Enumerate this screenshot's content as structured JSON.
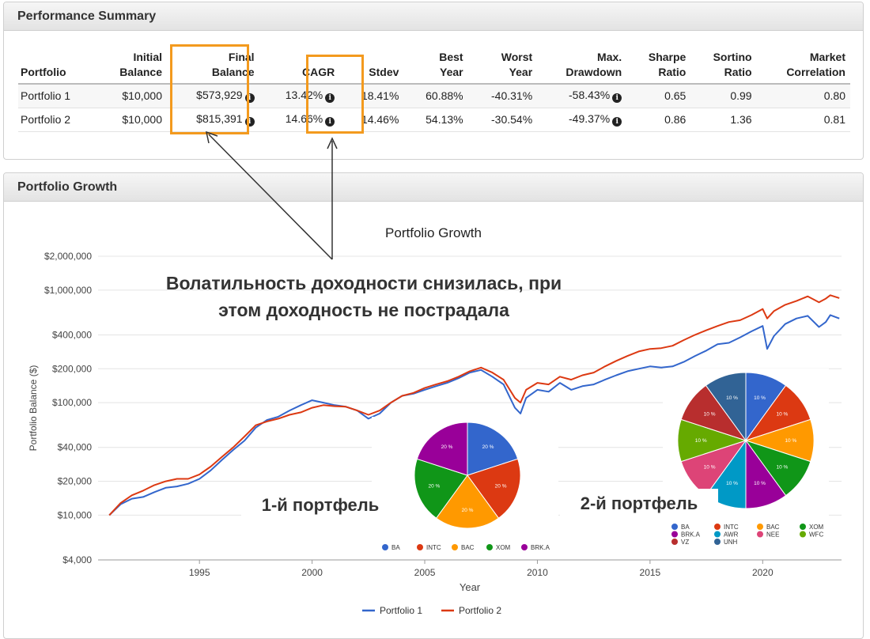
{
  "performance": {
    "title": "Performance Summary",
    "headers": [
      [
        "Portfolio"
      ],
      [
        "Initial",
        "Balance"
      ],
      [
        "Final",
        "Balance"
      ],
      [
        "CAGR"
      ],
      [
        "Stdev"
      ],
      [
        "Best",
        "Year"
      ],
      [
        "Worst",
        "Year"
      ],
      [
        "Max.",
        "Drawdown"
      ],
      [
        "Sharpe",
        "Ratio"
      ],
      [
        "Sortino",
        "Ratio"
      ],
      [
        "Market",
        "Correlation"
      ]
    ],
    "rows": [
      [
        "Portfolio 1",
        "$10,000",
        "$573,929",
        "13.42%",
        "18.41%",
        "60.88%",
        "-40.31%",
        "-58.43%",
        "0.65",
        "0.99",
        "0.80"
      ],
      [
        "Portfolio 2",
        "$10,000",
        "$815,391",
        "14.66%",
        "14.46%",
        "54.13%",
        "-30.54%",
        "-49.37%",
        "0.86",
        "1.36",
        "0.81"
      ]
    ],
    "info_icon": "i"
  },
  "growth": {
    "title": "Portfolio Growth",
    "chart_title": "Portfolio Growth",
    "annotation": [
      "Волатильность доходности снизилась, при",
      "этом доходность не пострадала"
    ],
    "label_portfolio1": "1-й портфель",
    "label_portfolio2": "2-й портфель"
  },
  "colors": {
    "portfolio1": "#3366cc",
    "portfolio2": "#dc3912",
    "highlight": "#f39a1e"
  },
  "chart_data": [
    {
      "type": "line",
      "title": "Portfolio Growth",
      "xlabel": "Year",
      "ylabel": "Portfolio Balance ($)",
      "y_scale": "log",
      "ylim": [
        4000,
        2000000
      ],
      "xlim": [
        1990.5,
        2023.5
      ],
      "y_ticks": [
        {
          "v": 2000000,
          "label": "$2,000,000"
        },
        {
          "v": 1000000,
          "label": "$1,000,000"
        },
        {
          "v": 400000,
          "label": "$400,000"
        },
        {
          "v": 200000,
          "label": "$200,000"
        },
        {
          "v": 100000,
          "label": "$100,000"
        },
        {
          "v": 40000,
          "label": "$40,000"
        },
        {
          "v": 20000,
          "label": "$20,000"
        },
        {
          "v": 10000,
          "label": "$10,000"
        },
        {
          "v": 4000,
          "label": "$4,000"
        }
      ],
      "x_ticks": [
        {
          "v": 1995,
          "label": "1995"
        },
        {
          "v": 2000,
          "label": "2000"
        },
        {
          "v": 2005,
          "label": "2005"
        },
        {
          "v": 2010,
          "label": "2010"
        },
        {
          "v": 2015,
          "label": "2015"
        },
        {
          "v": 2020,
          "label": "2020"
        }
      ],
      "grid": true,
      "legend": "bottom",
      "series": [
        {
          "name": "Portfolio 1",
          "color": "#3366cc",
          "points": [
            [
              1991.0,
              10000
            ],
            [
              1991.5,
              12500
            ],
            [
              1992.0,
              14000
            ],
            [
              1992.5,
              14500
            ],
            [
              1993.0,
              16000
            ],
            [
              1993.5,
              17500
            ],
            [
              1994.0,
              18000
            ],
            [
              1994.5,
              19000
            ],
            [
              1995.0,
              21000
            ],
            [
              1995.5,
              25000
            ],
            [
              1996.0,
              31000
            ],
            [
              1996.5,
              38000
            ],
            [
              1997.0,
              46000
            ],
            [
              1997.5,
              60000
            ],
            [
              1998.0,
              70000
            ],
            [
              1998.5,
              75000
            ],
            [
              1999.0,
              85000
            ],
            [
              1999.5,
              95000
            ],
            [
              2000.0,
              105000
            ],
            [
              2000.5,
              100000
            ],
            [
              2001.0,
              95000
            ],
            [
              2001.5,
              92000
            ],
            [
              2002.0,
              85000
            ],
            [
              2002.5,
              72000
            ],
            [
              2003.0,
              80000
            ],
            [
              2003.5,
              100000
            ],
            [
              2004.0,
              115000
            ],
            [
              2004.5,
              120000
            ],
            [
              2005.0,
              130000
            ],
            [
              2005.5,
              140000
            ],
            [
              2006.0,
              150000
            ],
            [
              2006.5,
              165000
            ],
            [
              2007.0,
              185000
            ],
            [
              2007.5,
              195000
            ],
            [
              2008.0,
              170000
            ],
            [
              2008.5,
              145000
            ],
            [
              2009.0,
              90000
            ],
            [
              2009.25,
              80000
            ],
            [
              2009.5,
              110000
            ],
            [
              2010.0,
              130000
            ],
            [
              2010.5,
              125000
            ],
            [
              2011.0,
              150000
            ],
            [
              2011.5,
              130000
            ],
            [
              2012.0,
              140000
            ],
            [
              2012.5,
              145000
            ],
            [
              2013.0,
              160000
            ],
            [
              2013.5,
              175000
            ],
            [
              2014.0,
              190000
            ],
            [
              2014.5,
              200000
            ],
            [
              2015.0,
              210000
            ],
            [
              2015.5,
              205000
            ],
            [
              2016.0,
              210000
            ],
            [
              2016.5,
              230000
            ],
            [
              2017.0,
              260000
            ],
            [
              2017.5,
              290000
            ],
            [
              2018.0,
              330000
            ],
            [
              2018.5,
              340000
            ],
            [
              2019.0,
              380000
            ],
            [
              2019.5,
              430000
            ],
            [
              2020.0,
              480000
            ],
            [
              2020.2,
              300000
            ],
            [
              2020.5,
              390000
            ],
            [
              2021.0,
              500000
            ],
            [
              2021.5,
              560000
            ],
            [
              2022.0,
              590000
            ],
            [
              2022.5,
              470000
            ],
            [
              2022.8,
              520000
            ],
            [
              2023.0,
              600000
            ],
            [
              2023.4,
              560000
            ]
          ]
        },
        {
          "name": "Portfolio 2",
          "color": "#dc3912",
          "points": [
            [
              1991.0,
              10000
            ],
            [
              1991.5,
              12800
            ],
            [
              1992.0,
              15000
            ],
            [
              1992.5,
              16500
            ],
            [
              1993.0,
              18500
            ],
            [
              1993.5,
              20000
            ],
            [
              1994.0,
              21000
            ],
            [
              1994.5,
              21000
            ],
            [
              1995.0,
              23000
            ],
            [
              1995.5,
              27000
            ],
            [
              1996.0,
              33000
            ],
            [
              1996.5,
              40000
            ],
            [
              1997.0,
              50000
            ],
            [
              1997.5,
              63000
            ],
            [
              1998.0,
              68000
            ],
            [
              1998.5,
              72000
            ],
            [
              1999.0,
              78000
            ],
            [
              1999.5,
              82000
            ],
            [
              2000.0,
              90000
            ],
            [
              2000.5,
              95000
            ],
            [
              2001.0,
              93000
            ],
            [
              2001.5,
              92000
            ],
            [
              2002.0,
              85000
            ],
            [
              2002.5,
              78000
            ],
            [
              2003.0,
              85000
            ],
            [
              2003.5,
              100000
            ],
            [
              2004.0,
              115000
            ],
            [
              2004.5,
              122000
            ],
            [
              2005.0,
              135000
            ],
            [
              2005.5,
              145000
            ],
            [
              2006.0,
              155000
            ],
            [
              2006.5,
              170000
            ],
            [
              2007.0,
              190000
            ],
            [
              2007.5,
              205000
            ],
            [
              2008.0,
              185000
            ],
            [
              2008.5,
              160000
            ],
            [
              2009.0,
              110000
            ],
            [
              2009.25,
              100000
            ],
            [
              2009.5,
              130000
            ],
            [
              2010.0,
              150000
            ],
            [
              2010.5,
              145000
            ],
            [
              2011.0,
              170000
            ],
            [
              2011.5,
              160000
            ],
            [
              2012.0,
              175000
            ],
            [
              2012.5,
              185000
            ],
            [
              2013.0,
              210000
            ],
            [
              2013.5,
              235000
            ],
            [
              2014.0,
              260000
            ],
            [
              2014.5,
              285000
            ],
            [
              2015.0,
              300000
            ],
            [
              2015.5,
              305000
            ],
            [
              2016.0,
              320000
            ],
            [
              2016.5,
              360000
            ],
            [
              2017.0,
              400000
            ],
            [
              2017.5,
              440000
            ],
            [
              2018.0,
              480000
            ],
            [
              2018.5,
              520000
            ],
            [
              2019.0,
              540000
            ],
            [
              2019.5,
              600000
            ],
            [
              2020.0,
              680000
            ],
            [
              2020.2,
              560000
            ],
            [
              2020.5,
              650000
            ],
            [
              2021.0,
              740000
            ],
            [
              2021.5,
              800000
            ],
            [
              2022.0,
              880000
            ],
            [
              2022.5,
              780000
            ],
            [
              2022.8,
              840000
            ],
            [
              2023.0,
              900000
            ],
            [
              2023.4,
              850000
            ]
          ]
        }
      ]
    },
    {
      "type": "pie",
      "title": "1-й портфель",
      "labels": [
        "BA",
        "INTC",
        "BAC",
        "XOM",
        "BRK.A"
      ],
      "values": [
        20,
        20,
        20,
        20,
        20
      ],
      "slice_labels": [
        "20 %",
        "20 %",
        "20 %",
        "20 %",
        "20 %"
      ],
      "colors": [
        "#3366cc",
        "#dc3912",
        "#ff9900",
        "#109618",
        "#990099"
      ],
      "legend": "bottom"
    },
    {
      "type": "pie",
      "title": "2-й портфель",
      "labels": [
        "BA",
        "INTC",
        "BAC",
        "XOM",
        "BRK.A",
        "AWR",
        "NEE",
        "WFC",
        "VZ",
        "UNH"
      ],
      "values": [
        10,
        10,
        10,
        10,
        10,
        10,
        10,
        10,
        10,
        10
      ],
      "slice_labels": [
        "10 %",
        "10 %",
        "10 %",
        "10 %",
        "10 %",
        "10 %",
        "10 %",
        "10 %",
        "10 %",
        "10 %"
      ],
      "colors": [
        "#3366cc",
        "#dc3912",
        "#ff9900",
        "#109618",
        "#990099",
        "#0099c6",
        "#dd4477",
        "#66aa00",
        "#b82e2e",
        "#316395"
      ],
      "legend": "bottom"
    }
  ]
}
